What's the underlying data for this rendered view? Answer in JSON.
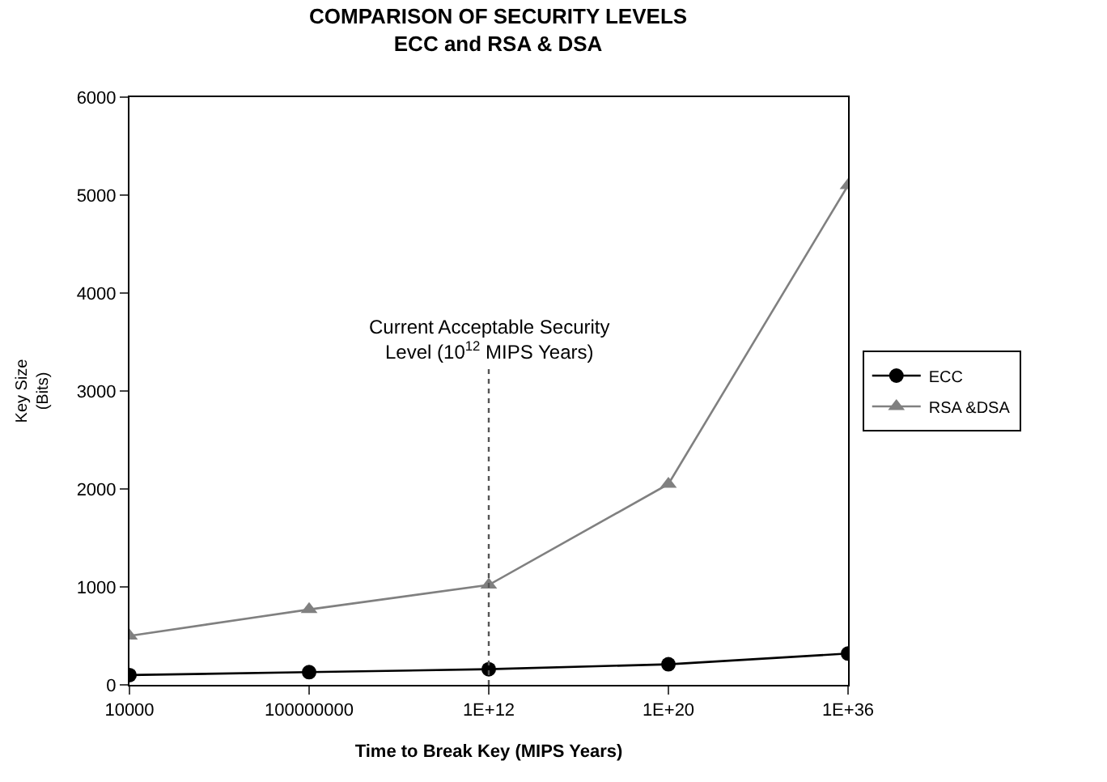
{
  "chart_data": {
    "type": "line",
    "title": "COMPARISON OF SECURITY LEVELS\nECC and RSA & DSA",
    "xlabel": "Time to Break Key (MIPS Years)",
    "ylabel": "Key Size\n(Bits)",
    "categories": [
      "10000",
      "100000000",
      "1E+12",
      "1E+20",
      "1E+36"
    ],
    "series": [
      {
        "name": "ECC",
        "color": "#000000",
        "marker": "circle",
        "values": [
          100,
          130,
          160,
          210,
          320
        ]
      },
      {
        "name": "RSA &DSA",
        "color": "#808080",
        "marker": "triangle",
        "values": [
          500,
          770,
          1020,
          2050,
          5100
        ]
      }
    ],
    "ylim": [
      0,
      6000
    ],
    "yticks": [
      0,
      1000,
      2000,
      3000,
      4000,
      5000,
      6000
    ],
    "legend": "right",
    "ref_lines": [
      {
        "axis": "x",
        "value": "1E+12",
        "label": "Current Acceptable Security\nLevel (10$^{12}$ MIPS Years)",
        "color": "#555555",
        "line_style": "dotted"
      }
    ]
  }
}
